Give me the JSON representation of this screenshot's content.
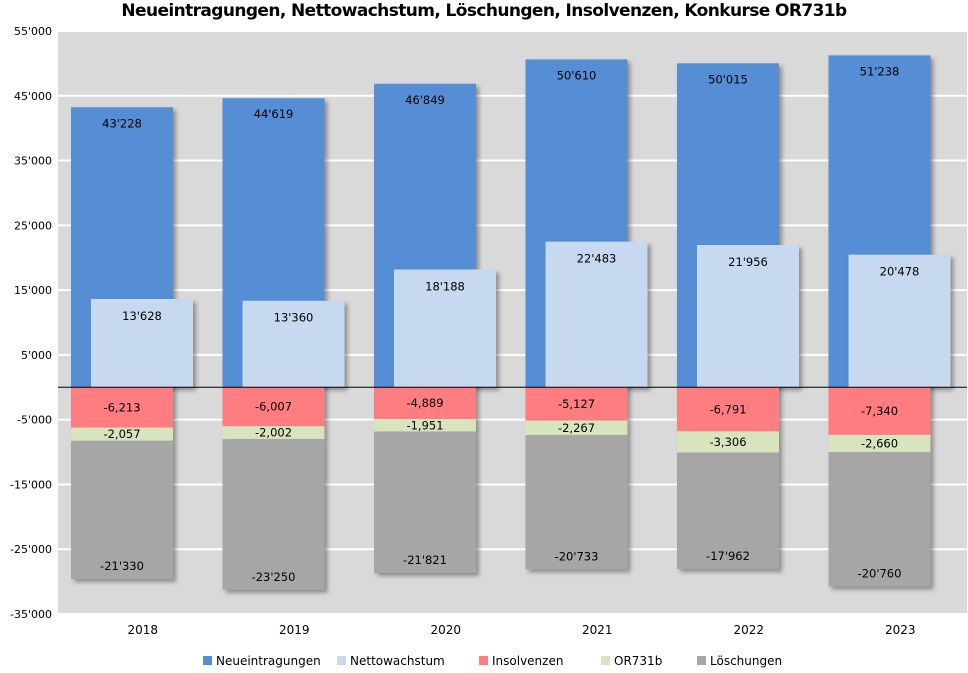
{
  "chart_data": {
    "type": "bar",
    "title": "Neueintragungen, Nettowachstum, Löschungen, Insolvenzen, Konkurse OR731b",
    "categories": [
      "2018",
      "2019",
      "2020",
      "2021",
      "2022",
      "2023"
    ],
    "ylim": [
      -35000,
      55000
    ],
    "yticks": [
      -35000,
      -25000,
      -15000,
      -5000,
      5000,
      15000,
      25000,
      35000,
      45000,
      55000
    ],
    "ytick_labels": [
      "-35'000",
      "-25'000",
      "-15'000",
      "-5'000",
      "5'000",
      "15'000",
      "25'000",
      "35'000",
      "45'000",
      "55'000"
    ],
    "grid": true,
    "legend_position": "bottom",
    "series": [
      {
        "name": "Neueintragungen",
        "color": "#558ed5",
        "values": [
          43228,
          44619,
          46849,
          50610,
          50015,
          51238
        ],
        "labels": [
          "43'228",
          "44'619",
          "46'849",
          "50'610",
          "50'015",
          "51'238"
        ]
      },
      {
        "name": "Nettowachstum",
        "color": "#c6d9f1",
        "values": [
          13628,
          13360,
          18188,
          22483,
          21956,
          20478
        ],
        "labels": [
          "13'628",
          "13'360",
          "18'188",
          "22'483",
          "21'956",
          "20'478"
        ]
      },
      {
        "name": "Insolvenzen",
        "color": "#ff7c80",
        "values": [
          -6213,
          -6007,
          -4889,
          -5127,
          -6791,
          -7340
        ],
        "labels": [
          "-6,213",
          "-6,007",
          "-4,889",
          "-5,127",
          "-6,791",
          "-7,340"
        ]
      },
      {
        "name": "OR731b",
        "color": "#d7e4bd",
        "values": [
          -2057,
          -2002,
          -1951,
          -2267,
          -3306,
          -2660
        ],
        "labels": [
          "-2,057",
          "-2,002",
          "-1,951",
          "-2,267",
          "-3,306",
          "-2,660"
        ]
      },
      {
        "name": "Löschungen",
        "color": "#a6a6a6",
        "values": [
          -21330,
          -23250,
          -21821,
          -20733,
          -17962,
          -20760
        ],
        "labels": [
          "-21'330",
          "-23'250",
          "-21'821",
          "-20'733",
          "-17'962",
          "-20'760"
        ]
      }
    ]
  }
}
